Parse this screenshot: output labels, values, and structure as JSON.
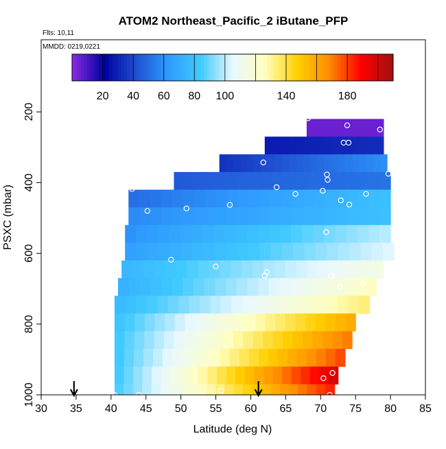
{
  "chart_data": {
    "type": "heatmap",
    "title": "ATOM2 Northeast_Pacific_2 iButane_PFP",
    "flights_note": "Flts: 10,11",
    "dates_note": "MMDD: 0219,0221",
    "xlabel": "Latitude (deg N)",
    "ylabel": "PSXC (mbar)",
    "xlim": [
      30,
      85
    ],
    "ylim": [
      1000,
      0
    ],
    "x_ticks": [
      30,
      35,
      40,
      45,
      50,
      55,
      60,
      65,
      70,
      75,
      80,
      85
    ],
    "y_ticks": [
      200,
      400,
      600,
      800,
      1000
    ],
    "colorbar": {
      "vmin": 0,
      "vmax": 210,
      "tick_values": [
        20,
        40,
        60,
        80,
        100,
        140,
        180
      ],
      "colors": [
        "#8a2be2",
        "#0000a0",
        "#1f4fd0",
        "#2f9bff",
        "#3fcaff",
        "#e8f8ff",
        "#ffffc0",
        "#ffd000",
        "#ff8c00",
        "#ff0000",
        "#a01010"
      ]
    },
    "arrows_lat": [
      34.7,
      61.1
    ],
    "layers": [
      {
        "p": [
          220,
          270
        ],
        "lat": [
          68.0,
          79.0
        ],
        "v": [
          5,
          5
        ]
      },
      {
        "p": [
          270,
          320
        ],
        "lat": [
          62.0,
          79.0
        ],
        "v": [
          28,
          33
        ]
      },
      {
        "p": [
          320,
          370
        ],
        "lat": [
          55.5,
          79.5
        ],
        "v": [
          34,
          60
        ]
      },
      {
        "p": [
          370,
          420
        ],
        "lat": [
          49.0,
          80.0
        ],
        "v": [
          45,
          52
        ]
      },
      {
        "p": [
          420,
          470
        ],
        "lat": [
          42.5,
          80.0
        ],
        "v": [
          50,
          80
        ]
      },
      {
        "p": [
          470,
          520
        ],
        "lat": [
          42.5,
          80.0
        ],
        "v": [
          58,
          80
        ]
      },
      {
        "p": [
          520,
          570
        ],
        "lat": [
          42.0,
          80.0
        ],
        "v": [
          60,
          100
        ]
      },
      {
        "p": [
          570,
          620
        ],
        "lat": [
          42.0,
          80.5
        ],
        "v": [
          65,
          105
        ]
      },
      {
        "p": [
          620,
          670
        ],
        "lat": [
          41.5,
          79.0
        ],
        "v": [
          75,
          115
        ]
      },
      {
        "p": [
          670,
          720
        ],
        "lat": [
          41.0,
          78.0
        ],
        "v": [
          72,
          125
        ]
      },
      {
        "p": [
          720,
          770
        ],
        "lat": [
          40.5,
          77.0
        ],
        "v": [
          76,
          135
        ]
      },
      {
        "p": [
          770,
          820
        ],
        "lat": [
          40.5,
          75.0
        ],
        "v": [
          80,
          160
        ]
      },
      {
        "p": [
          820,
          870
        ],
        "lat": [
          40.5,
          74.5
        ],
        "v": [
          82,
          172
        ]
      },
      {
        "p": [
          870,
          920
        ],
        "lat": [
          40.5,
          73.5
        ],
        "v": [
          82,
          180
        ]
      },
      {
        "p": [
          920,
          970
        ],
        "lat": [
          40.5,
          72.5
        ],
        "v": [
          82,
          200
        ]
      },
      {
        "p": [
          970,
          1000
        ],
        "lat": [
          40.5,
          72.0
        ],
        "v": [
          84,
          186
        ]
      }
    ],
    "samples": [
      {
        "lat": 68.2,
        "p": 218
      },
      {
        "lat": 73.8,
        "p": 238
      },
      {
        "lat": 78.5,
        "p": 250
      },
      {
        "lat": 73.3,
        "p": 287
      },
      {
        "lat": 74.0,
        "p": 287
      },
      {
        "lat": 61.8,
        "p": 343
      },
      {
        "lat": 70.9,
        "p": 377
      },
      {
        "lat": 79.7,
        "p": 375
      },
      {
        "lat": 71.0,
        "p": 392
      },
      {
        "lat": 63.7,
        "p": 413
      },
      {
        "lat": 43.0,
        "p": 418
      },
      {
        "lat": 70.3,
        "p": 423
      },
      {
        "lat": 66.4,
        "p": 432
      },
      {
        "lat": 76.5,
        "p": 432
      },
      {
        "lat": 72.9,
        "p": 450
      },
      {
        "lat": 74.1,
        "p": 462
      },
      {
        "lat": 57.0,
        "p": 463
      },
      {
        "lat": 50.8,
        "p": 473
      },
      {
        "lat": 45.2,
        "p": 480
      },
      {
        "lat": 70.8,
        "p": 540
      },
      {
        "lat": 48.6,
        "p": 618
      },
      {
        "lat": 55.0,
        "p": 637
      },
      {
        "lat": 62.3,
        "p": 653
      },
      {
        "lat": 62.0,
        "p": 663
      },
      {
        "lat": 71.5,
        "p": 663
      },
      {
        "lat": 76.0,
        "p": 685
      },
      {
        "lat": 72.8,
        "p": 695
      },
      {
        "lat": 40.0,
        "p": 720
      },
      {
        "lat": 71.7,
        "p": 938
      },
      {
        "lat": 70.4,
        "p": 953
      },
      {
        "lat": 55.8,
        "p": 988
      },
      {
        "lat": 40.5,
        "p": 1000
      },
      {
        "lat": 44.0,
        "p": 1000
      },
      {
        "lat": 71.3,
        "p": 1000
      }
    ]
  }
}
